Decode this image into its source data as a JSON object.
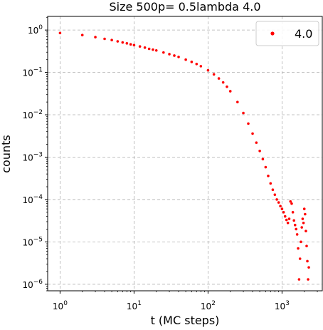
{
  "chart_data": {
    "type": "scatter",
    "title": "Size 500p= 0.5lambda 4.0",
    "xlabel": "t (MC steps)",
    "ylabel": "counts",
    "xscale": "log",
    "yscale": "log",
    "xlim": [
      0.68,
      3500
    ],
    "ylim": [
      7e-07,
      2.1
    ],
    "xticks": [
      {
        "value": 1,
        "base": "10",
        "exp": "0"
      },
      {
        "value": 10,
        "base": "10",
        "exp": "1"
      },
      {
        "value": 100,
        "base": "10",
        "exp": "2"
      },
      {
        "value": 1000,
        "base": "10",
        "exp": "3"
      }
    ],
    "yticks": [
      {
        "value": 1e-06,
        "base": "10",
        "exp": "−6"
      },
      {
        "value": 1e-05,
        "base": "10",
        "exp": "−5"
      },
      {
        "value": 0.0001,
        "base": "10",
        "exp": "−4"
      },
      {
        "value": 0.001,
        "base": "10",
        "exp": "−3"
      },
      {
        "value": 0.01,
        "base": "10",
        "exp": "−2"
      },
      {
        "value": 0.1,
        "base": "10",
        "exp": "−1"
      },
      {
        "value": 1,
        "base": "10",
        "exp": "0"
      }
    ],
    "grid": true,
    "legend_position": "top-right",
    "color": "#ff0000",
    "series": [
      {
        "name": "4.0",
        "points": [
          [
            1,
            0.85
          ],
          [
            2,
            0.76
          ],
          [
            3,
            0.68
          ],
          [
            4,
            0.62
          ],
          [
            5,
            0.58
          ],
          [
            6,
            0.54
          ],
          [
            7,
            0.51
          ],
          [
            8,
            0.485
          ],
          [
            9,
            0.46
          ],
          [
            10,
            0.44
          ],
          [
            12,
            0.41
          ],
          [
            14,
            0.385
          ],
          [
            16,
            0.36
          ],
          [
            18,
            0.345
          ],
          [
            20,
            0.33
          ],
          [
            25,
            0.295
          ],
          [
            30,
            0.27
          ],
          [
            35,
            0.25
          ],
          [
            40,
            0.232
          ],
          [
            50,
            0.2
          ],
          [
            60,
            0.177
          ],
          [
            70,
            0.158
          ],
          [
            80,
            0.14
          ],
          [
            100,
            0.112
          ],
          [
            120,
            0.09
          ],
          [
            140,
            0.072
          ],
          [
            160,
            0.058
          ],
          [
            180,
            0.046
          ],
          [
            200,
            0.036
          ],
          [
            250,
            0.02
          ],
          [
            300,
            0.011
          ],
          [
            350,
            0.0062
          ],
          [
            400,
            0.0036
          ],
          [
            450,
            0.0022
          ],
          [
            500,
            0.0014
          ],
          [
            550,
            0.0009
          ],
          [
            600,
            0.00058
          ],
          [
            650,
            0.00036
          ],
          [
            700,
            0.00024
          ],
          [
            750,
            0.00017
          ],
          [
            800,
            0.00013
          ],
          [
            850,
            0.0001
          ],
          [
            900,
            8.5e-05
          ],
          [
            950,
            7e-05
          ],
          [
            1000,
            6e-05
          ],
          [
            1050,
            5e-05
          ],
          [
            1100,
            4e-05
          ],
          [
            1150,
            3.3e-05
          ],
          [
            1200,
            2.8e-05
          ],
          [
            1250,
            3.5e-05
          ],
          [
            1300,
            9e-05
          ],
          [
            1350,
            8e-05
          ],
          [
            1400,
            5e-05
          ],
          [
            1450,
            3.2e-05
          ],
          [
            1500,
            2.5e-05
          ],
          [
            1550,
            2e-05
          ],
          [
            1600,
            1.5e-05
          ],
          [
            1650,
            7e-06
          ],
          [
            1700,
            1.3e-06
          ],
          [
            1750,
            4e-06
          ],
          [
            1800,
            1e-05
          ],
          [
            1850,
            2.2e-05
          ],
          [
            1900,
            3.5e-05
          ],
          [
            1950,
            2.8e-05
          ],
          [
            2000,
            6e-05
          ],
          [
            2050,
            4.5e-05
          ],
          [
            2100,
            1.8e-05
          ],
          [
            2150,
            8e-06
          ],
          [
            2200,
            3.5e-06
          ],
          [
            2250,
            1.3e-06
          ],
          [
            2300,
            2.5e-06
          ]
        ]
      }
    ]
  }
}
